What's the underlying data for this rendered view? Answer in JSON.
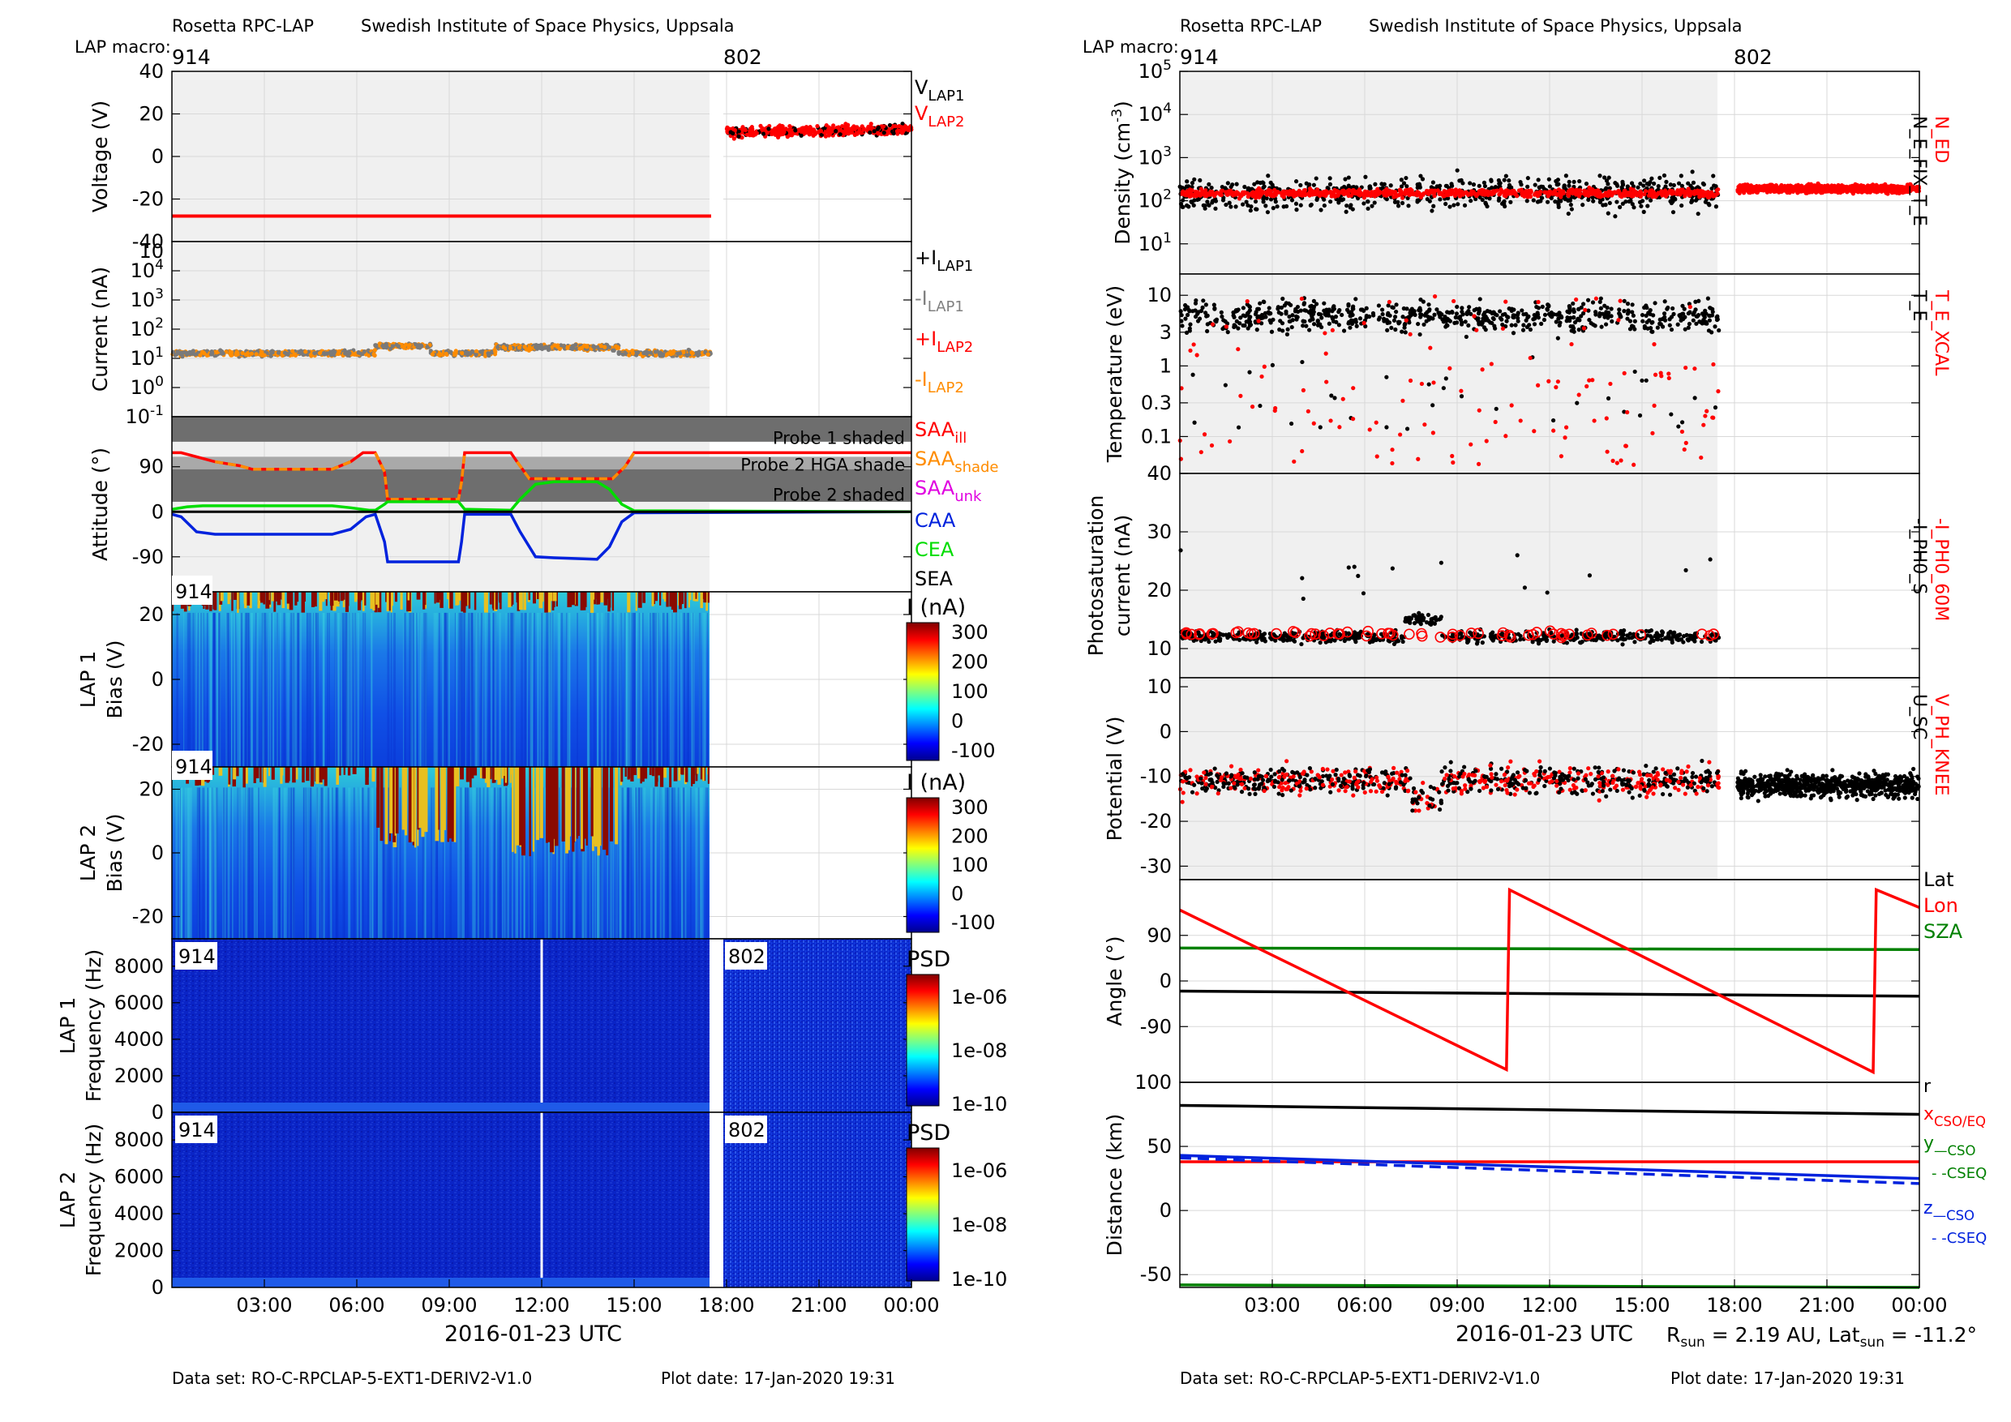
{
  "colors": {
    "black": "#000000",
    "red": "#ff0000",
    "gray": "#808080",
    "orange": "#ff8c00",
    "magenta": "#e000e0",
    "blue": "#0022dd",
    "green": "#00dd00",
    "darkgreen": "#008000",
    "shade_bg": "#f0f0f0"
  },
  "left": {
    "header": {
      "instrument": "Rosetta RPC-LAP",
      "institute": "Swedish Institute of Space Physics, Uppsala",
      "macro_label": "LAP macro:",
      "macro_a": "914",
      "macro_b": "802"
    },
    "xlabel": "2016-01-23 UTC",
    "xticks": [
      "03:00",
      "06:00",
      "09:00",
      "12:00",
      "15:00",
      "18:00",
      "21:00",
      "00:00"
    ],
    "footer": {
      "dataset": "Data set: RO-C-RPCLAP-5-EXT1-DERIV2-V1.0",
      "plotdate": "Plot date: 17-Jan-2020 19:31"
    }
  },
  "right": {
    "header": {
      "instrument": "Rosetta RPC-LAP",
      "institute": "Swedish Institute of Space Physics, Uppsala",
      "macro_label": "LAP macro:",
      "macro_a": "914",
      "macro_b": "802"
    },
    "xlabel": "2016-01-23 UTC",
    "xticks": [
      "03:00",
      "06:00",
      "09:00",
      "12:00",
      "15:00",
      "18:00",
      "21:00",
      "00:00"
    ],
    "rsun": "R",
    "rsun_sub": "sun",
    "rsun_val": " = 2.19 AU, Lat",
    "lat_sub": "sun",
    "lat_val": " = -11.2°",
    "footer": {
      "dataset": "Data set: RO-C-RPCLAP-5-EXT1-DERIV2-V1.0",
      "plotdate": "Plot date: 17-Jan-2020 19:31"
    }
  },
  "chart_data": [
    {
      "id": "voltage",
      "type": "scatter",
      "ylabel": "Voltage (V)",
      "ylim": [
        -40,
        40
      ],
      "yticks": [
        "40",
        "20",
        "0",
        "-20",
        "-40"
      ],
      "series": [
        {
          "name": "V_LAP1",
          "color": "#000000"
        },
        {
          "name": "V_LAP2",
          "color": "#ff0000"
        }
      ],
      "segments": [
        {
          "x": [
            0,
            17.5
          ],
          "y": -28
        },
        {
          "x": [
            18,
            24
          ],
          "y_range": [
            10,
            14
          ]
        }
      ]
    },
    {
      "id": "current",
      "type": "scatter",
      "ylabel": "Current (nA)",
      "yscale": "log",
      "yticks": [
        "10^4",
        "10^3",
        "10^2",
        "10^1",
        "10^0",
        "10^-1"
      ],
      "y_top_label": "10",
      "series": [
        {
          "name": "+I_LAP1",
          "color": "#000000"
        },
        {
          "name": "-I_LAP1",
          "color": "#808080"
        },
        {
          "name": "+I_LAP2",
          "color": "#ff0000"
        },
        {
          "name": "-I_LAP2",
          "color": "#ff8c00"
        }
      ],
      "level_nA": 15
    },
    {
      "id": "attitude",
      "type": "line",
      "ylabel": "Attitude (°)",
      "yticks": [
        "90",
        "0",
        "-90"
      ],
      "bands": [
        "Probe 1 shaded",
        "Probe 2 HGA shade",
        "Probe 2 shaded"
      ],
      "series": [
        {
          "name": "SAA_ill",
          "color": "#ff0000"
        },
        {
          "name": "SAA_shade",
          "color": "#ff8c00"
        },
        {
          "name": "SAA_unk",
          "color": "#e000e0"
        },
        {
          "name": "CAA",
          "color": "#0022dd"
        },
        {
          "name": "CEA",
          "color": "#00dd00"
        },
        {
          "name": "SEA",
          "color": "#000000"
        }
      ],
      "segments": [
        {
          "x0": 0,
          "x1": 2.2,
          "saa": 90,
          "caa": -28
        },
        {
          "x0": 2.2,
          "x1": 5.2,
          "saa": 80,
          "caa": -45
        },
        {
          "x0": 6.7,
          "x1": 9.3,
          "saa": 25,
          "caa": -105
        },
        {
          "x0": 11.2,
          "x1": 14.5,
          "saa": 62,
          "caa": -100
        },
        {
          "x0": 14.5,
          "x1": 24,
          "saa": 118,
          "caa": 0
        }
      ]
    },
    {
      "id": "lap1_bias",
      "type": "heatmap",
      "ylabel1": "LAP 1",
      "ylabel2": "Bias (V)",
      "yticks": [
        "20",
        "0",
        "-20"
      ],
      "macro": "914",
      "cbar_title": "I (nA)",
      "cbar_ticks": [
        "300",
        "200",
        "100",
        "0",
        "-100"
      ]
    },
    {
      "id": "lap2_bias",
      "type": "heatmap",
      "ylabel1": "LAP 2",
      "ylabel2": "Bias (V)",
      "yticks": [
        "20",
        "0",
        "-20"
      ],
      "macro": "914",
      "cbar_title": "I (nA)",
      "cbar_ticks": [
        "300",
        "200",
        "100",
        "0",
        "-100"
      ]
    },
    {
      "id": "lap1_psd",
      "type": "heatmap",
      "ylabel1": "LAP 1",
      "ylabel2": "Frequency (Hz)",
      "yticks": [
        "8000",
        "6000",
        "4000",
        "2000",
        "0"
      ],
      "macro_a": "914",
      "macro_b": "802",
      "cbar_title": "PSD",
      "cbar_ticks": [
        "1e-06",
        "1e-08",
        "1e-10"
      ]
    },
    {
      "id": "lap2_psd",
      "type": "heatmap",
      "ylabel1": "LAP 2",
      "ylabel2": "Frequency (Hz)",
      "yticks": [
        "8000",
        "6000",
        "4000",
        "2000",
        "0"
      ],
      "macro_a": "914",
      "macro_b": "802",
      "cbar_title": "PSD",
      "cbar_ticks": [
        "1e-06",
        "1e-08",
        "1e-10"
      ]
    },
    {
      "id": "density",
      "type": "scatter",
      "ylabel": "Density (cm",
      "ylabel_sup": "-3",
      "ylabel_end": ")",
      "yscale": "log",
      "yticks": [
        "10^5",
        "10^4",
        "10^3",
        "10^2",
        "10^1"
      ],
      "series": [
        {
          "name": "N_ED",
          "color": "#ff0000"
        },
        {
          "name": "N_E_FIX_T_E",
          "color": "#000000"
        }
      ],
      "level_cm3": 150
    },
    {
      "id": "temperature",
      "type": "scatter",
      "ylabel": "Temperature (eV)",
      "yscale": "log",
      "yticks": [
        "10",
        "3",
        "1",
        "0.3",
        "0.1"
      ],
      "series": [
        {
          "name": "T_E_XCAL",
          "color": "#ff0000"
        },
        {
          "name": "T_E",
          "color": "#000000"
        }
      ]
    },
    {
      "id": "photosat",
      "type": "scatter",
      "ylabel1": "Photosaturation",
      "ylabel2": "current (nA)",
      "yticks": [
        "40",
        "30",
        "20",
        "10"
      ],
      "ylim": [
        5,
        40
      ],
      "series": [
        {
          "name": "-I_PH0_60M",
          "color": "#ff0000"
        },
        {
          "name": "-I_PH0_S",
          "color": "#000000"
        }
      ],
      "level_nA": 12
    },
    {
      "id": "potential",
      "type": "scatter",
      "ylabel": "Potential (V)",
      "yticks": [
        "10",
        "0",
        "-10",
        "-20",
        "-30"
      ],
      "ylim": [
        -33,
        12
      ],
      "series": [
        {
          "name": "V_PH_KNEE",
          "color": "#ff0000"
        },
        {
          "name": "U_SC",
          "color": "#000000"
        }
      ],
      "level_V": -11
    },
    {
      "id": "angle",
      "type": "line",
      "ylabel": "Angle (°)",
      "yticks": [
        "90",
        "0",
        "-90",
        "100"
      ],
      "ylim": [
        -200,
        200
      ],
      "series": [
        {
          "name": "Lat",
          "color": "#000000"
        },
        {
          "name": "Lon",
          "color": "#ff0000"
        },
        {
          "name": "SZA",
          "color": "#008000"
        }
      ],
      "lon_points": [
        [
          0,
          140
        ],
        [
          10.6,
          -175
        ],
        [
          10.7,
          180
        ],
        [
          22.5,
          -180
        ],
        [
          22.6,
          180
        ],
        [
          24,
          145
        ]
      ],
      "lat_points": [
        [
          0,
          -20
        ],
        [
          24,
          -30
        ]
      ],
      "sza_points": [
        [
          0,
          65
        ],
        [
          24,
          62
        ]
      ]
    },
    {
      "id": "distance",
      "type": "line",
      "ylabel": "Distance (km)",
      "yticks": [
        "50",
        "0",
        "-50"
      ],
      "ylim": [
        -60,
        100
      ],
      "series": [
        {
          "name": "r",
          "color": "#000000"
        },
        {
          "name": "x_CSO/EQ",
          "color": "#ff0000"
        },
        {
          "name": "y_CSO",
          "color": "#008000"
        },
        {
          "name": "y_CSEQ",
          "color": "#008000",
          "dash": true
        },
        {
          "name": "z_CSO",
          "color": "#0022dd"
        },
        {
          "name": "z_CSEQ",
          "color": "#0022dd",
          "dash": true
        }
      ],
      "r": [
        [
          0,
          82
        ],
        [
          24,
          75
        ]
      ],
      "x": [
        [
          0,
          38
        ],
        [
          24,
          38
        ]
      ],
      "y": [
        [
          0,
          -58
        ],
        [
          24,
          -60
        ]
      ],
      "z": [
        [
          0,
          43
        ],
        [
          24,
          25
        ]
      ],
      "z_eq": [
        [
          0,
          41
        ],
        [
          24,
          21
        ]
      ]
    }
  ]
}
